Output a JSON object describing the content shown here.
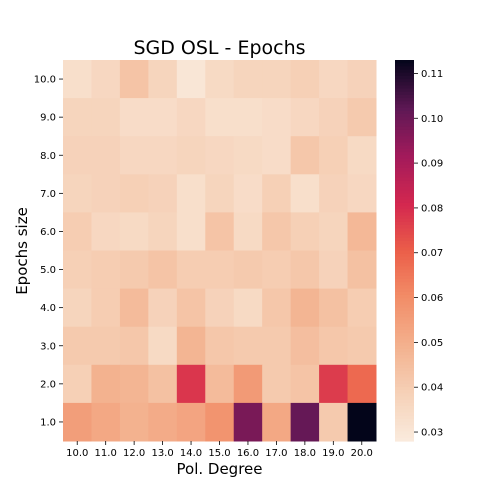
{
  "chart_data": {
    "type": "heatmap",
    "title": "SGD OSL - Epochs",
    "xlabel": "Pol. Degree",
    "ylabel": "Epochs size",
    "x": [
      "10.0",
      "11.0",
      "12.0",
      "13.0",
      "14.0",
      "15.0",
      "16.0",
      "17.0",
      "18.0",
      "19.0",
      "20.0"
    ],
    "y": [
      "10.0",
      "9.0",
      "8.0",
      "7.0",
      "6.0",
      "5.0",
      "4.0",
      "3.0",
      "2.0",
      "1.0"
    ],
    "values": [
      [
        0.033,
        0.036,
        0.043,
        0.037,
        0.03,
        0.035,
        0.037,
        0.037,
        0.039,
        0.036,
        0.038
      ],
      [
        0.037,
        0.037,
        0.034,
        0.034,
        0.036,
        0.033,
        0.033,
        0.034,
        0.036,
        0.038,
        0.041
      ],
      [
        0.038,
        0.038,
        0.036,
        0.036,
        0.037,
        0.036,
        0.035,
        0.034,
        0.042,
        0.039,
        0.035
      ],
      [
        0.037,
        0.038,
        0.039,
        0.038,
        0.033,
        0.037,
        0.034,
        0.039,
        0.033,
        0.038,
        0.036
      ],
      [
        0.04,
        0.036,
        0.035,
        0.037,
        0.033,
        0.043,
        0.035,
        0.042,
        0.039,
        0.037,
        0.047
      ],
      [
        0.039,
        0.04,
        0.041,
        0.043,
        0.04,
        0.04,
        0.041,
        0.04,
        0.042,
        0.038,
        0.044
      ],
      [
        0.037,
        0.04,
        0.046,
        0.038,
        0.043,
        0.038,
        0.035,
        0.042,
        0.048,
        0.044,
        0.04
      ],
      [
        0.041,
        0.041,
        0.042,
        0.035,
        0.048,
        0.042,
        0.041,
        0.041,
        0.045,
        0.042,
        0.041
      ],
      [
        0.039,
        0.049,
        0.048,
        0.044,
        0.078,
        0.046,
        0.056,
        0.041,
        0.043,
        0.077,
        0.068
      ],
      [
        0.055,
        0.052,
        0.049,
        0.051,
        0.053,
        0.058,
        0.098,
        0.052,
        0.101,
        0.041,
        0.113
      ]
    ],
    "colorbar": {
      "min": 0.028,
      "max": 0.113,
      "ticks": [
        "0.03",
        "0.04",
        "0.05",
        "0.06",
        "0.07",
        "0.08",
        "0.09",
        "0.10",
        "0.11"
      ],
      "tick_values": [
        0.03,
        0.04,
        0.05,
        0.06,
        0.07,
        0.08,
        0.09,
        0.1,
        0.11
      ],
      "colormap": "rocket_r"
    },
    "grid": false
  }
}
